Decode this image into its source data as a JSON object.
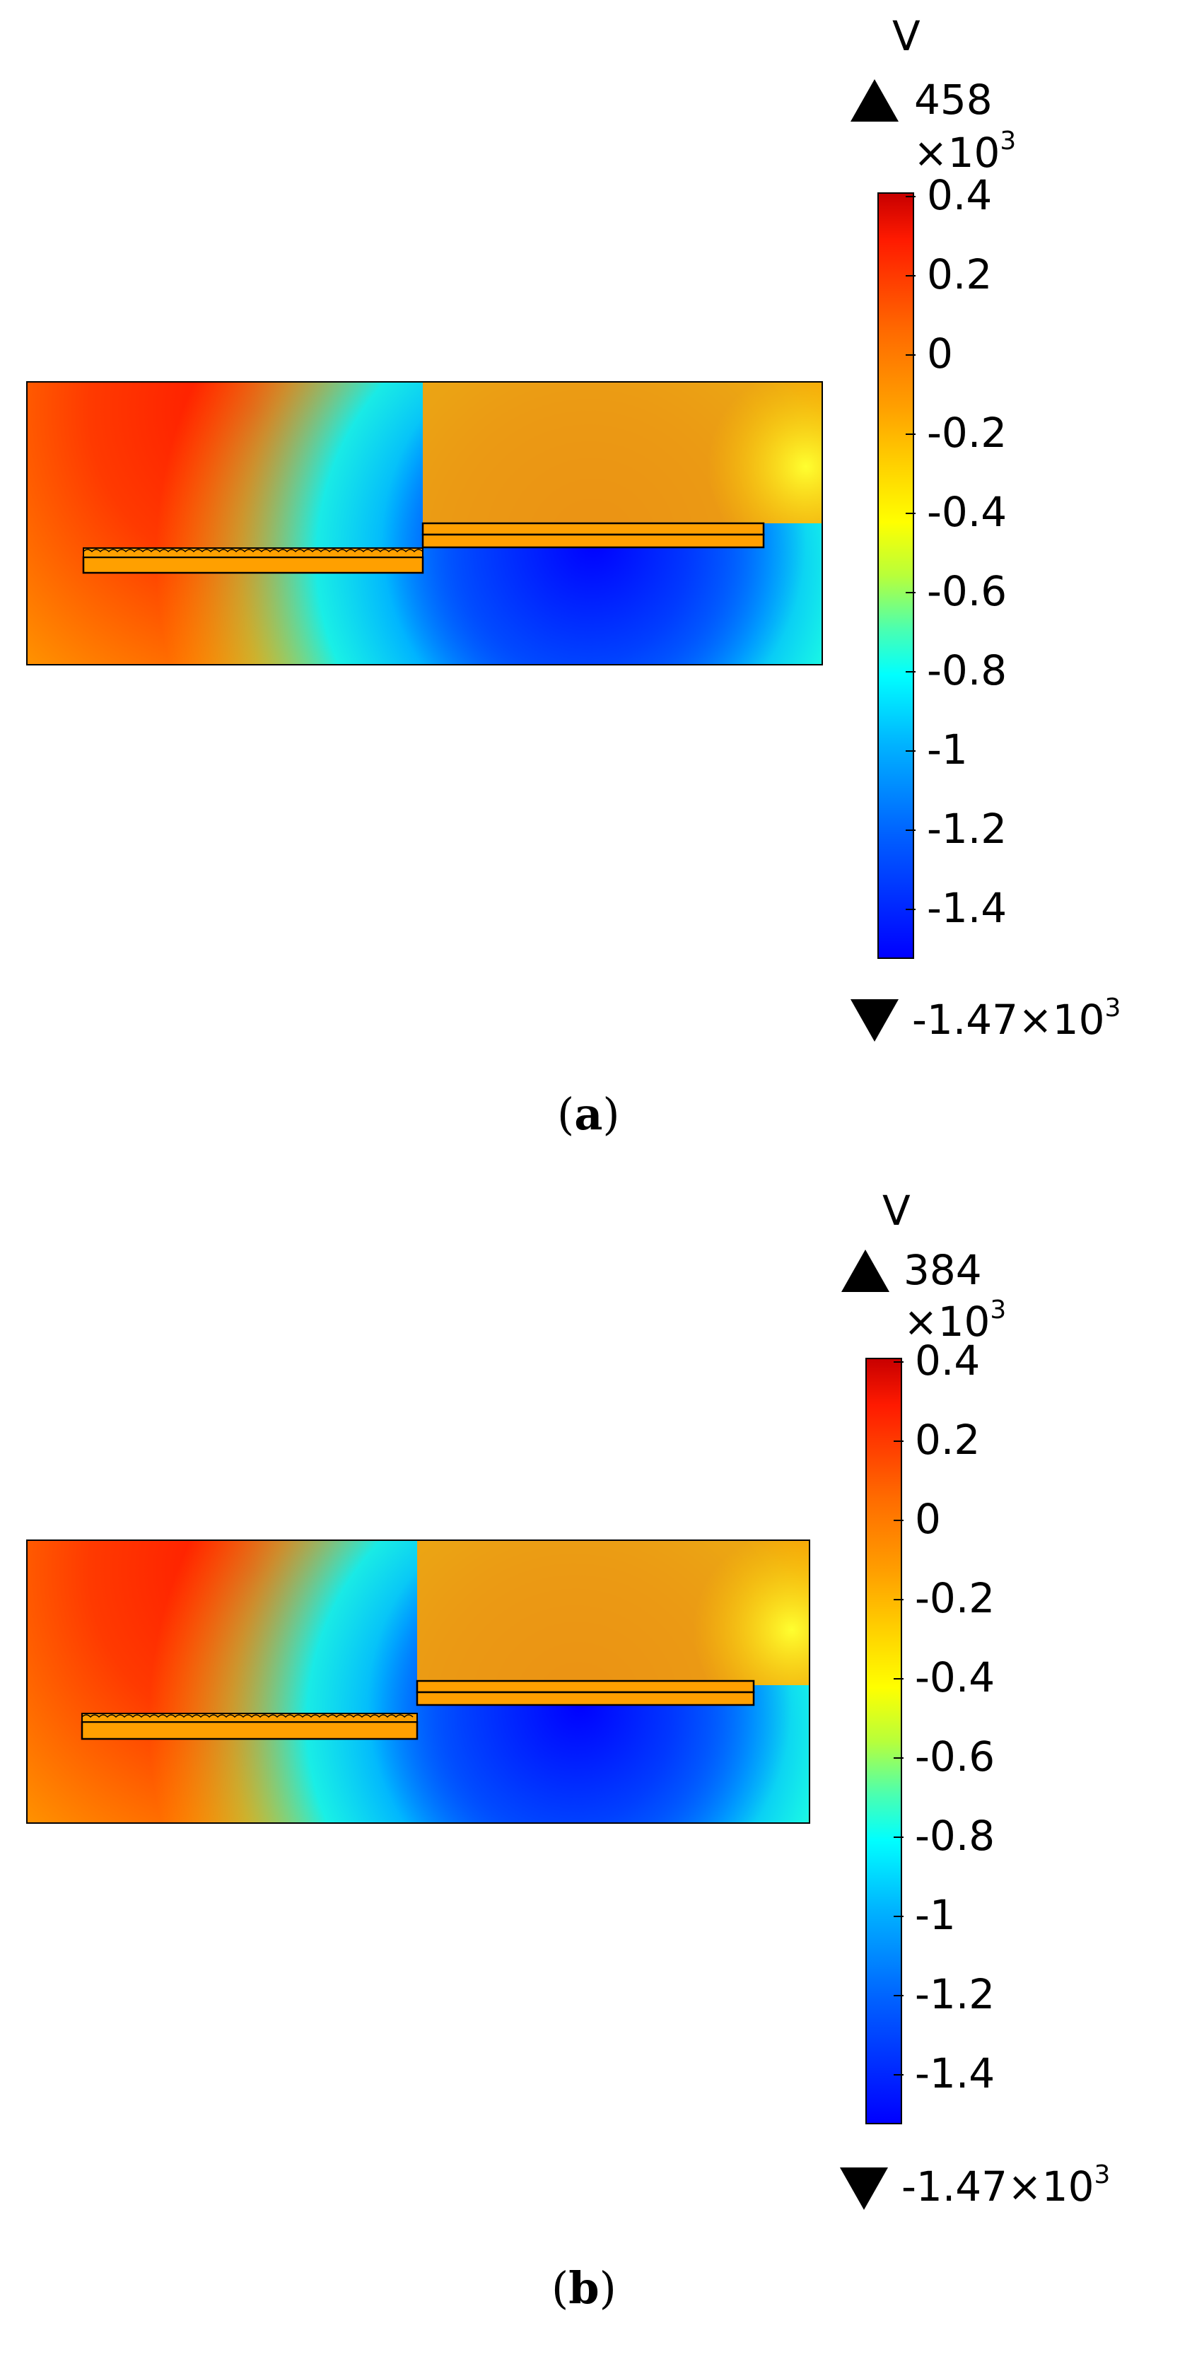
{
  "panels": [
    {
      "caption_open": "(",
      "caption_letter": "a",
      "caption_close": ")",
      "unit": "V",
      "max_value": "458",
      "scale": "×10",
      "scale_exp": "3",
      "min_value": "-1.47×10",
      "min_exp": "3",
      "ticks": [
        "0.4",
        "0.2",
        "0",
        "-0.2",
        "-0.4",
        "-0.6",
        "-0.8",
        "-1",
        "-1.2",
        "-1.4"
      ]
    },
    {
      "caption_open": "(",
      "caption_letter": "b",
      "caption_close": ")",
      "unit": "V",
      "max_value": "384",
      "scale": "×10",
      "scale_exp": "3",
      "min_value": "-1.47×10",
      "min_exp": "3",
      "ticks": [
        "0.4",
        "0.2",
        "0",
        "-0.2",
        "-0.4",
        "-0.6",
        "-0.8",
        "-1",
        "-1.2",
        "-1.4"
      ]
    }
  ],
  "colors": {
    "red": "#ff1a00",
    "orange": "#ffa000",
    "yellow": "#ffff00",
    "cyan": "#00ffff",
    "blue": "#0000ff"
  }
}
